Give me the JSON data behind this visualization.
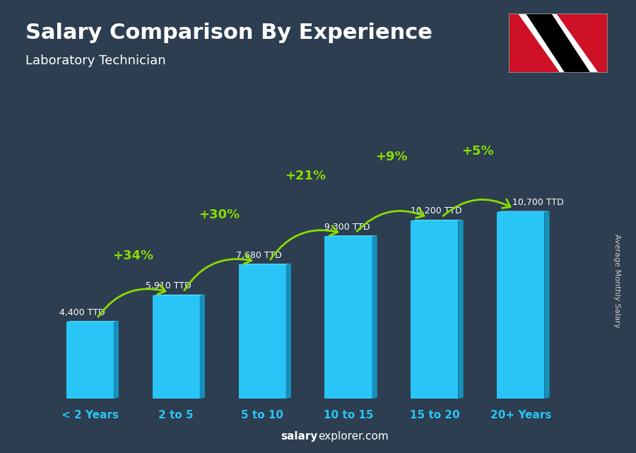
{
  "title": "Salary Comparison By Experience",
  "subtitle": "Laboratory Technician",
  "ylabel": "Average Monthly Salary",
  "categories": [
    "< 2 Years",
    "2 to 5",
    "5 to 10",
    "10 to 15",
    "15 to 20",
    "20+ Years"
  ],
  "values": [
    4400,
    5910,
    7680,
    9300,
    10200,
    10700
  ],
  "labels": [
    "4,400 TTD",
    "5,910 TTD",
    "7,680 TTD",
    "9,300 TTD",
    "10,200 TTD",
    "10,700 TTD"
  ],
  "pct_labels": [
    "+34%",
    "+30%",
    "+21%",
    "+9%",
    "+5%"
  ],
  "bar_color": "#29C5F6",
  "bar_dark_color": "#1590BB",
  "bar_top_color": "#55DDFF",
  "background_color": "#2c3e50",
  "title_color": "#FFFFFF",
  "subtitle_color": "#FFFFFF",
  "label_color": "#29C5F6",
  "cat_color": "#29C5F6",
  "pct_color": "#88DD00",
  "ylabel_color": "#CCCCCC",
  "ylim_max": 13500,
  "bottom_label_bold": "salary",
  "bottom_label_normal": "explorer.com",
  "flag_red": "#CE1126",
  "flag_black": "#000000",
  "flag_white": "#FFFFFF"
}
